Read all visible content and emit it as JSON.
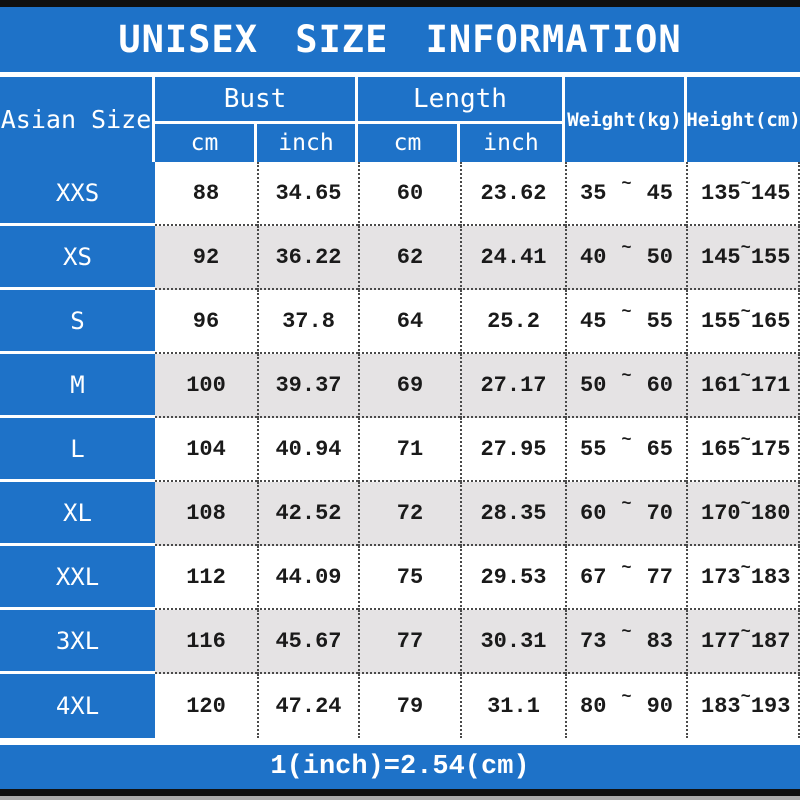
{
  "title": "UNISEX SIZE INFORMATION",
  "header": {
    "size_col": "Asian Size",
    "bust": "Bust",
    "length": "Length",
    "cm": "cm",
    "inch": "inch",
    "weight": "Weight(kg)",
    "height": "Height(cm)"
  },
  "range_separator": "~",
  "rows": [
    {
      "size": "XXS",
      "bust_cm": "88",
      "bust_inch": "34.65",
      "length_cm": "60",
      "length_inch": "23.62",
      "weight_min": "35",
      "weight_max": "45",
      "height_min": "135",
      "height_max": "145"
    },
    {
      "size": "XS",
      "bust_cm": "92",
      "bust_inch": "36.22",
      "length_cm": "62",
      "length_inch": "24.41",
      "weight_min": "40",
      "weight_max": "50",
      "height_min": "145",
      "height_max": "155"
    },
    {
      "size": "S",
      "bust_cm": "96",
      "bust_inch": "37.8",
      "length_cm": "64",
      "length_inch": "25.2",
      "weight_min": "45",
      "weight_max": "55",
      "height_min": "155",
      "height_max": "165"
    },
    {
      "size": "M",
      "bust_cm": "100",
      "bust_inch": "39.37",
      "length_cm": "69",
      "length_inch": "27.17",
      "weight_min": "50",
      "weight_max": "60",
      "height_min": "161",
      "height_max": "171"
    },
    {
      "size": "L",
      "bust_cm": "104",
      "bust_inch": "40.94",
      "length_cm": "71",
      "length_inch": "27.95",
      "weight_min": "55",
      "weight_max": "65",
      "height_min": "165",
      "height_max": "175"
    },
    {
      "size": "XL",
      "bust_cm": "108",
      "bust_inch": "42.52",
      "length_cm": "72",
      "length_inch": "28.35",
      "weight_min": "60",
      "weight_max": "70",
      "height_min": "170",
      "height_max": "180"
    },
    {
      "size": "XXL",
      "bust_cm": "112",
      "bust_inch": "44.09",
      "length_cm": "75",
      "length_inch": "29.53",
      "weight_min": "67",
      "weight_max": "77",
      "height_min": "173",
      "height_max": "183"
    },
    {
      "size": "3XL",
      "bust_cm": "116",
      "bust_inch": "45.67",
      "length_cm": "77",
      "length_inch": "30.31",
      "weight_min": "73",
      "weight_max": "83",
      "height_min": "177",
      "height_max": "187"
    },
    {
      "size": "4XL",
      "bust_cm": "120",
      "bust_inch": "47.24",
      "length_cm": "79",
      "length_inch": "31.1",
      "weight_min": "80",
      "weight_max": "90",
      "height_min": "183",
      "height_max": "193"
    }
  ],
  "footer_note": "1(inch)=2.54(cm)",
  "colors": {
    "blue": "#1E72C8",
    "row_alt_gray": "#E5E3E4",
    "dotted_line": "#4A4A4A",
    "border_bar_black": "#101010",
    "bottom_edge_gray": "#ABABAB",
    "text_dark": "#1A1A1A",
    "text_white": "#FFFFFF"
  }
}
